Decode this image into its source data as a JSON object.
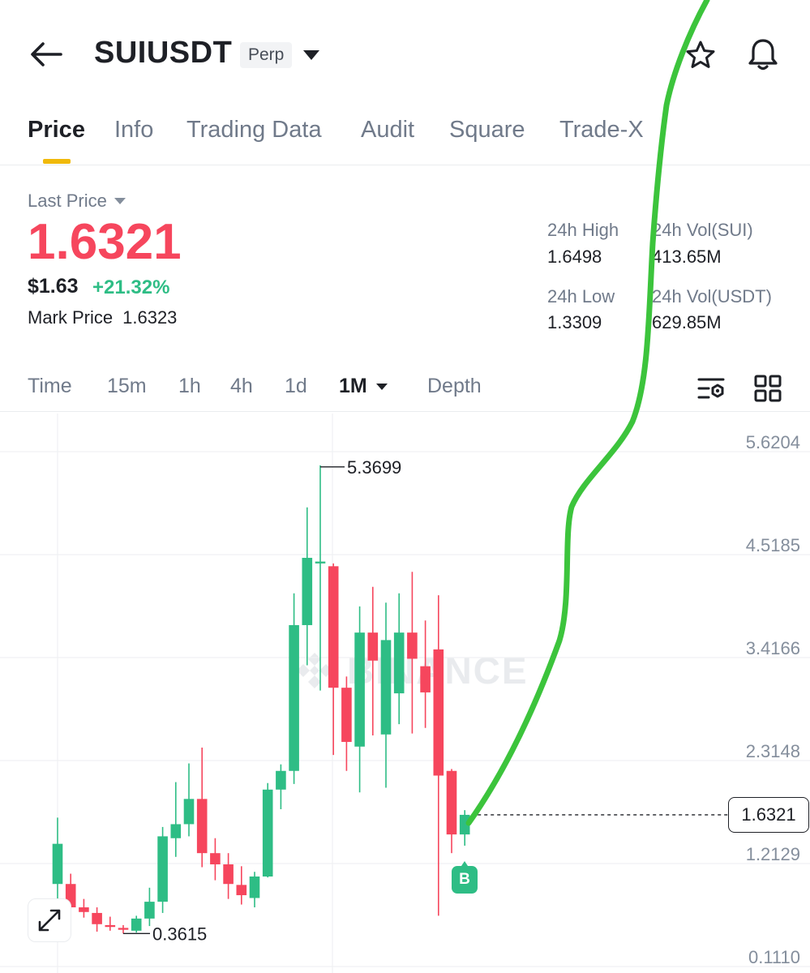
{
  "header": {
    "symbol": "SUIUSDT",
    "badge": "Perp",
    "icons": [
      "back-arrow-icon",
      "chevron-down-icon",
      "star-icon",
      "bell-icon"
    ]
  },
  "tabs": [
    {
      "label": "Price",
      "active": true
    },
    {
      "label": "Info"
    },
    {
      "label": "Trading Data"
    },
    {
      "label": "Audit"
    },
    {
      "label": "Square"
    },
    {
      "label": "Trade-X"
    }
  ],
  "price": {
    "label": "Last Price",
    "last": "1.6321",
    "usd": "$1.63",
    "change": "+21.32%",
    "mark_label": "Mark Price",
    "mark_value": "1.6323"
  },
  "stats": {
    "high_label": "24h High",
    "high_value": "1.6498",
    "low_label": "24h Low",
    "low_value": "1.3309",
    "vol_sui_label": "24h Vol(SUI)",
    "vol_sui_value": "413.65M",
    "vol_usdt_label": "24h Vol(USDT)",
    "vol_usdt_value": "629.85M"
  },
  "intervals": [
    {
      "label": "Time"
    },
    {
      "label": "15m"
    },
    {
      "label": "1h"
    },
    {
      "label": "4h"
    },
    {
      "label": "1d"
    },
    {
      "label": "1M",
      "active": true
    },
    {
      "label": "Depth"
    }
  ],
  "colors": {
    "up": "#2ebd85",
    "down": "#f6465d",
    "accent": "#f0b90b",
    "annotation_line": "#3cc43c"
  },
  "chart": {
    "current_price": "1.6321",
    "marker": "B",
    "watermark": "BINANCE"
  },
  "chart_data": {
    "type": "candlestick",
    "interval": "1M",
    "y_ticks": [
      5.6204,
      4.5185,
      3.4166,
      2.3148,
      1.2129,
      0.111
    ],
    "max_label": "5.3699",
    "min_label": "0.3615",
    "current_label": "1.6321",
    "candles": [
      {
        "o": 0.89,
        "h": 1.6,
        "l": 0.62,
        "c": 1.32
      },
      {
        "o": 0.89,
        "h": 1.0,
        "l": 0.52,
        "c": 0.64
      },
      {
        "o": 0.64,
        "h": 0.73,
        "l": 0.53,
        "c": 0.59
      },
      {
        "o": 0.58,
        "h": 0.64,
        "l": 0.38,
        "c": 0.46
      },
      {
        "o": 0.45,
        "h": 0.54,
        "l": 0.39,
        "c": 0.43
      },
      {
        "o": 0.42,
        "h": 0.45,
        "l": 0.36,
        "c": 0.4
      },
      {
        "o": 0.39,
        "h": 0.55,
        "l": 0.37,
        "c": 0.52
      },
      {
        "o": 0.52,
        "h": 0.85,
        "l": 0.44,
        "c": 0.7
      },
      {
        "o": 0.7,
        "h": 1.5,
        "l": 0.58,
        "c": 1.4
      },
      {
        "o": 1.38,
        "h": 1.98,
        "l": 1.18,
        "c": 1.53
      },
      {
        "o": 1.53,
        "h": 2.18,
        "l": 1.4,
        "c": 1.8
      },
      {
        "o": 1.8,
        "h": 2.35,
        "l": 1.07,
        "c": 1.22
      },
      {
        "o": 1.22,
        "h": 1.38,
        "l": 0.93,
        "c": 1.1
      },
      {
        "o": 1.1,
        "h": 1.22,
        "l": 0.73,
        "c": 0.89
      },
      {
        "o": 0.88,
        "h": 1.08,
        "l": 0.67,
        "c": 0.77
      },
      {
        "o": 0.74,
        "h": 1.02,
        "l": 0.64,
        "c": 0.97
      },
      {
        "o": 0.97,
        "h": 1.97,
        "l": 0.96,
        "c": 1.9
      },
      {
        "o": 1.9,
        "h": 2.17,
        "l": 1.69,
        "c": 2.1
      },
      {
        "o": 2.1,
        "h": 4.0,
        "l": 1.96,
        "c": 3.66
      },
      {
        "o": 3.66,
        "h": 4.92,
        "l": 3.23,
        "c": 4.38
      },
      {
        "o": 4.32,
        "h": 5.37,
        "l": 2.96,
        "c": 4.34
      },
      {
        "o": 4.29,
        "h": 4.32,
        "l": 2.27,
        "c": 2.99
      },
      {
        "o": 2.99,
        "h": 3.11,
        "l": 2.1,
        "c": 2.41
      },
      {
        "o": 2.36,
        "h": 3.86,
        "l": 1.87,
        "c": 3.58
      },
      {
        "o": 3.58,
        "h": 4.07,
        "l": 2.48,
        "c": 3.28
      },
      {
        "o": 2.49,
        "h": 3.9,
        "l": 1.92,
        "c": 3.5
      },
      {
        "o": 2.93,
        "h": 4.0,
        "l": 2.6,
        "c": 3.58
      },
      {
        "o": 3.58,
        "h": 4.23,
        "l": 2.5,
        "c": 3.3
      },
      {
        "o": 3.22,
        "h": 3.71,
        "l": 2.56,
        "c": 2.94
      },
      {
        "o": 3.4,
        "h": 3.98,
        "l": 0.55,
        "c": 2.05
      },
      {
        "o": 2.1,
        "h": 2.12,
        "l": 1.22,
        "c": 1.42
      },
      {
        "o": 1.42,
        "h": 1.68,
        "l": 1.3,
        "c": 1.63
      }
    ]
  }
}
